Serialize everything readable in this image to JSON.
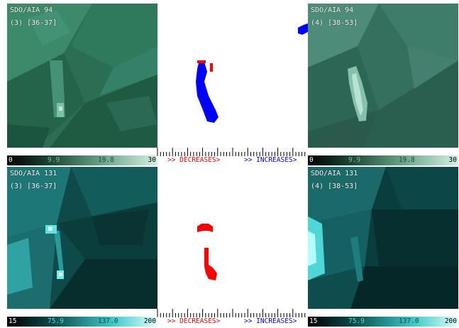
{
  "colors": {
    "aia94_dark": "#1e4a38",
    "aia94_light": "#c9eadb",
    "aia131_dark": "#062a2a",
    "aia131_light": "#c8ffff",
    "decrease": "#ff0000",
    "increase": "#0000ff"
  },
  "top_row": {
    "left": {
      "instrument": "SDO/AIA 94",
      "frame": "(3) [36-37]"
    },
    "right": {
      "instrument": "SDO/AIA 94",
      "frame": "(4) [38-53]"
    },
    "colorbar": {
      "min": "0",
      "mid1": "9.9",
      "mid2": "19.8",
      "max": "30"
    },
    "legend": {
      "decreases": ">> DECREASES>",
      "increases": ">> INCREASES>"
    }
  },
  "bottom_row": {
    "left": {
      "instrument": "SDO/AIA 131",
      "frame": "(3) [36-37]"
    },
    "right": {
      "instrument": "SDO/AIA 131",
      "frame": "(4) [38-53]"
    },
    "colorbar": {
      "min": "15",
      "mid1": "75.9",
      "mid2": "137.0",
      "max": "200"
    },
    "legend": {
      "decreases": ">> DECREASES>",
      "increases": ">> INCREASES>"
    }
  }
}
